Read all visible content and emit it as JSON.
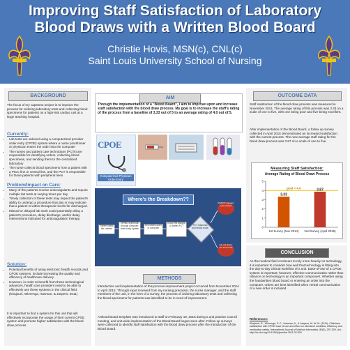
{
  "header": {
    "title": "Improving Staff Satisfaction of Laboratory Blood Draws with a Written Blood Board",
    "author": "Christie Hovis, MSN(c), CNL(c)",
    "school": "Saint Louis University School of Nursing",
    "colors": {
      "banner": "#4a78b8",
      "accent": "#c0392b"
    }
  },
  "background": {
    "heading": "BACKGROUND",
    "intro": "The focus of my capstone project is to improve the process for ordering laboratory tests and collecting blood specimens for patients on a high-risk cardiac unit at a large teaching hospital.",
    "currently_heading": "Currently:",
    "currently": [
      "Lab tests are ordered using a computerized provider order entry (CPOE) system where a nurse practitioner or physician enters the order into the computer",
      "The nurses and patient care technicians (PCTs) are responsible for identifying orders, collecting blood specimens, and sending them to the centralized laboratory",
      "The nurse collects blood specimens from a patient with a PICC line or central line, and the PCT is responsible for those patients with peripheral lines"
    ],
    "problem_heading": "Problem/Impact on Care:",
    "problem": [
      "Many of the patients receive anticoagulants and require multiple lab tests at varying times per day",
      "Timely collection of these tests may impact the patient's ability to undergo a procedure that day or may indicate that a patient is within therapeutic levels for discharged.",
      "Missed or delayed lab work could potentially delay a patient's procedure, delay discharge, and/or delay interventions indicated for anticoagulation therapy."
    ],
    "solution_heading": "Solution:",
    "solution": [
      "Potential benefits of using electronic health records and CPOE systems, include increasing the quality and efficiency of healthcare delivery",
      "However, in order to benefit from these technological advances, health care providers need to be able to effectively use these systems in the clinical field. (Khajouei, Wierenga, Hasman, & Jaspers, 2011)"
    ],
    "closing": "It is important to find a system for this unit that will effectively incorporate the usage of their current CPOE system and promote higher satisfaction with the blood draw process."
  },
  "aim": {
    "heading": "AIM",
    "text": "Through the implementation of a \"Blood Board\", I aim to improve upon and increase staff satisfaction with the blood draw process. My goal is to increase the staff's rating of the process from a baseline of 3.33 out of 5 to an average rating of 4.0 out of 5."
  },
  "images": {
    "cpoe_title": "CPOE",
    "cpoe_caption": "Computerized Physician Order Entry"
  },
  "breakdown": {
    "title": "Where's the Breakdown??",
    "nodes": [
      "Patient needs lab ordered",
      "NP/MD orders lab through computer order entry system",
      "RN notices order in computer",
      "Group RN assigns & notifies PCT",
      "PCT draws lab and sends to lab",
      "RN/PCT unaware order placed",
      "Lab not drawn, not sent to lab"
    ]
  },
  "methods": {
    "heading": "METHODS",
    "p1": "Introduction and implementation of this process improvement project occurred from November 2014 to April 2015. Through input received from my nursing preceptor, the nurse manager, and the staff members of the unit, in the form of a survey, the process of ordering laboratory tests and collecting the blood specimens for patients was identified to be in need of improvement.",
    "p2": "A Blood Board template was introduced to staff on February 19, 2015 during a unit practice council meeting, and unit-wide implementation of the Blood Board began soon after. Follow up surveys were collected to identify staff satisfaction with the blood draw process after the introduction of the Blood Board."
  },
  "outcome": {
    "heading": "OUTCOME DATA",
    "p1": "Staff satisfaction of the blood draw process was measured in November 2014. The average rating of this process was 3.33 on a scale of one to five, with one being poor and five being excellent.",
    "p2": "After implementation of the Blood Board, a follow up survey collected in April 2015 demonstrated an increased satisfaction with the current process. The new average staff rating for the blood draw process was 3.87 on a scale of one to five."
  },
  "chart_data": {
    "type": "bar",
    "title": "Measuring Staff Satisfaction:",
    "subtitle": "Average Rating of Blood Draw Process",
    "categories": [
      "1st Survey (Nov 2014)",
      "2nd Survey (April 2015)"
    ],
    "values": [
      3.33,
      3.87
    ],
    "value_labels": [
      "3.33",
      "3.87"
    ],
    "ylim": [
      0,
      5
    ],
    "yticks": [
      "0",
      "1",
      "2",
      "3",
      "4",
      "5"
    ],
    "goal_value": 4.0,
    "goal_label": "goal = 4.0",
    "colors": {
      "bar1": "#d35400",
      "bar2": "#c0392b",
      "goal": "#f1c40f"
    }
  },
  "conclusion": {
    "heading": "CONCLUSION",
    "text": "As the medical field continues to rely more heavily on technology, it is important to consider how well that technology is fitting into the day-to-day clinical workflow of a unit. Ease-of-use of a CPOE system is important; however, effective communication rather than reliance on technology is an important component. Whether using the handwritten blood board or entering an order into the computer, orders are best identified when verbal communication of a new order is included."
  },
  "references": {
    "heading": "References:",
    "text": "Khajouei, R., Wierenga, P. C., Hasman, A., & Jaspers, M. W. M. (2011). Clinicians satisfaction with CPOE ease of use and effect on clinicians' workflow, efficiency and medication safety. International Journal of Medical Informatics, 80(5), 297-309. doi: http://dx.doi.org/10.1016/j.ijmedinf.2011.02.009"
  }
}
